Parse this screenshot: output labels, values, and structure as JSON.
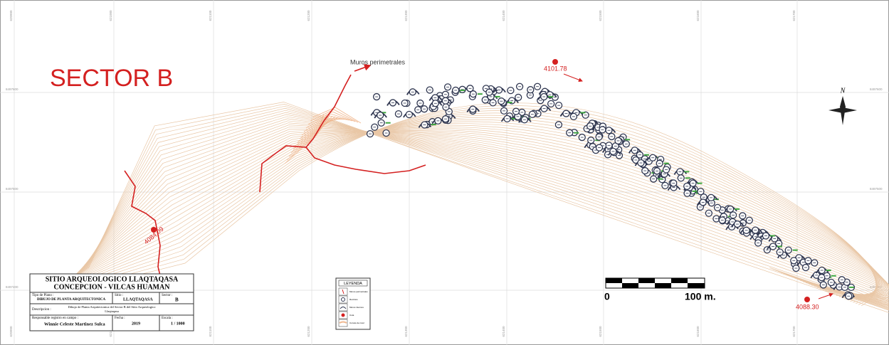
{
  "map": {
    "title": "SECTOR B",
    "annotation": "Muros perimetrales",
    "elevations": [
      "4101.78",
      "4084.09",
      "4088.30"
    ],
    "north": "N",
    "scale": {
      "start": "0",
      "end": "100 m."
    },
    "grid": {
      "x_labels": [
        "620900",
        "621000",
        "621100",
        "621200",
        "621300",
        "621400",
        "621500",
        "621600",
        "621700"
      ],
      "y_labels": [
        "8497600",
        "8497500",
        "8497400"
      ]
    }
  },
  "title_block": {
    "title": "SITIO ARQUEOLOGICO LLAQTAQASA",
    "subtitle": "CONCEPCION - VILCAS HUAMAN",
    "plan_type_label": "Tipo de Plano :",
    "plan_type": "DIBUJO DE PLANTA ARQUITECTONICA",
    "site_label": "Sitio :",
    "site": "LLAQTAQASA",
    "sector_label": "Sector :",
    "sector": "B",
    "description_label": "Descripcion :",
    "description": "Dibujo de Planta Arquitectonica del Sector B del Sitio Arqueologico Llaqtaqasa",
    "responsible_label": "Responsable registro en campo :",
    "responsible": "Winnie Celeste Martinez Sulca",
    "date_label": "Fecha :",
    "date": "2019",
    "scale_label": "Escala :",
    "scale": "1 / 1000"
  },
  "legend": {
    "title": "LEYENDA",
    "items": [
      "Muros perimetrales",
      "Recintos",
      "Muros internos",
      "Cota",
      "Curvas de nivel"
    ]
  }
}
